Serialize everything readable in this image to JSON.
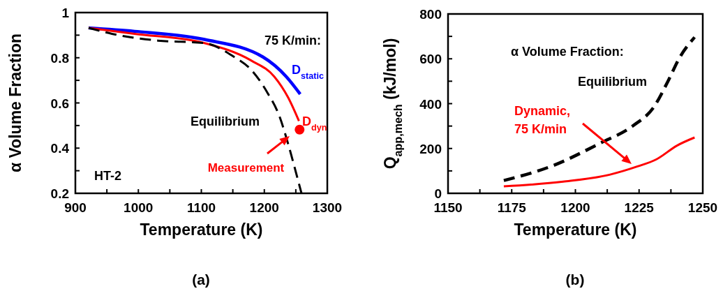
{
  "chart_data": [
    {
      "type": "line",
      "xlabel": "Temperature (K)",
      "ylabel": "α Volume Fraction",
      "xlim": [
        900,
        1300
      ],
      "ylim": [
        0.2,
        1
      ],
      "xticks": [
        900,
        {
          "value": 950,
          "label": null
        },
        1000,
        {
          "value": 1050,
          "label": null
        },
        1100,
        {
          "value": 1150,
          "label": null
        },
        1200,
        {
          "value": 1250,
          "label": null
        },
        1300
      ],
      "yticks": [
        0.2,
        {
          "value": 0.3,
          "label": null
        },
        0.4,
        {
          "value": 0.5,
          "label": null
        },
        0.6,
        {
          "value": 0.7,
          "label": null
        },
        0.8,
        {
          "value": 0.9,
          "label": null
        },
        1
      ],
      "series": [
        {
          "name": "D$_{static}$",
          "color": "#0000ff",
          "line_style": "solid",
          "x": [
            921,
            994,
            1105,
            1198,
            1235,
            1257
          ],
          "values": [
            0.932,
            0.917,
            0.881,
            0.803,
            0.716,
            0.639
          ]
        },
        {
          "name": "D$_{dyn}$",
          "color": "#ff0000",
          "line_style": "solid",
          "x": [
            921,
            994,
            1105,
            1179,
            1216,
            1238,
            1255
          ],
          "values": [
            0.932,
            0.906,
            0.865,
            0.788,
            0.716,
            0.623,
            0.52
          ]
        },
        {
          "name": "Equilibrium",
          "color": "#000000",
          "line_style": "dashed",
          "x": [
            921,
            958,
            1031,
            1105,
            1149,
            1179,
            1205,
            1224,
            1238,
            1253,
            1259
          ],
          "values": [
            0.932,
            0.906,
            0.876,
            0.865,
            0.809,
            0.747,
            0.645,
            0.541,
            0.417,
            0.263,
            0.2
          ]
        },
        {
          "type": "scatter",
          "marker": "circle",
          "color": "#ff0000",
          "x": [
            1256
          ],
          "values": [
            0.482
          ]
        }
      ],
      "annotations": [
        "75 K/min:",
        "HT-2",
        {
          "text": "Measurement",
          "x": 1256,
          "y": 0.482
        },
        "(a)"
      ]
    },
    {
      "type": "line",
      "xlabel": "Temperature (K)",
      "ylabel": "Q$_{app,mech}$ (kJ/mol)",
      "xlim": [
        1150,
        1250
      ],
      "ylim": [
        0,
        800
      ],
      "xticks": [
        1150,
        {
          "value": 1162.5,
          "label": null
        },
        1175,
        {
          "value": 1187.5,
          "label": null
        },
        1200,
        {
          "value": 1212.5,
          "label": null
        },
        1225,
        {
          "value": 1237.5,
          "label": null
        },
        1250
      ],
      "yticks": [
        0,
        {
          "value": 100,
          "label": null
        },
        200,
        {
          "value": 300,
          "label": null
        },
        400,
        {
          "value": 500,
          "label": null
        },
        600,
        {
          "value": 700,
          "label": null
        },
        800
      ],
      "series": [
        {
          "name": "Equilibrium",
          "color": "#000000",
          "line_style": "dashed",
          "x": [
            1171.9,
            1191.5,
            1209.8,
            1222.6,
            1230.8,
            1236.3,
            1240.8,
            1246.8
          ],
          "values": [
            57,
            125,
            224,
            301,
            385,
            499,
            603,
            696
          ]
        },
        {
          "name": "Dynamic,\n75 K/min",
          "color": "#ff0000",
          "line_style": "solid",
          "x": [
            1171.9,
            1195.2,
            1213.4,
            1224.4,
            1231.7,
            1239.9,
            1246.8
          ],
          "values": [
            31,
            52,
            83,
            120,
            151,
            213,
            249
          ]
        }
      ],
      "annotations": [
        "α Volume Fraction:",
        "(b)"
      ]
    }
  ]
}
